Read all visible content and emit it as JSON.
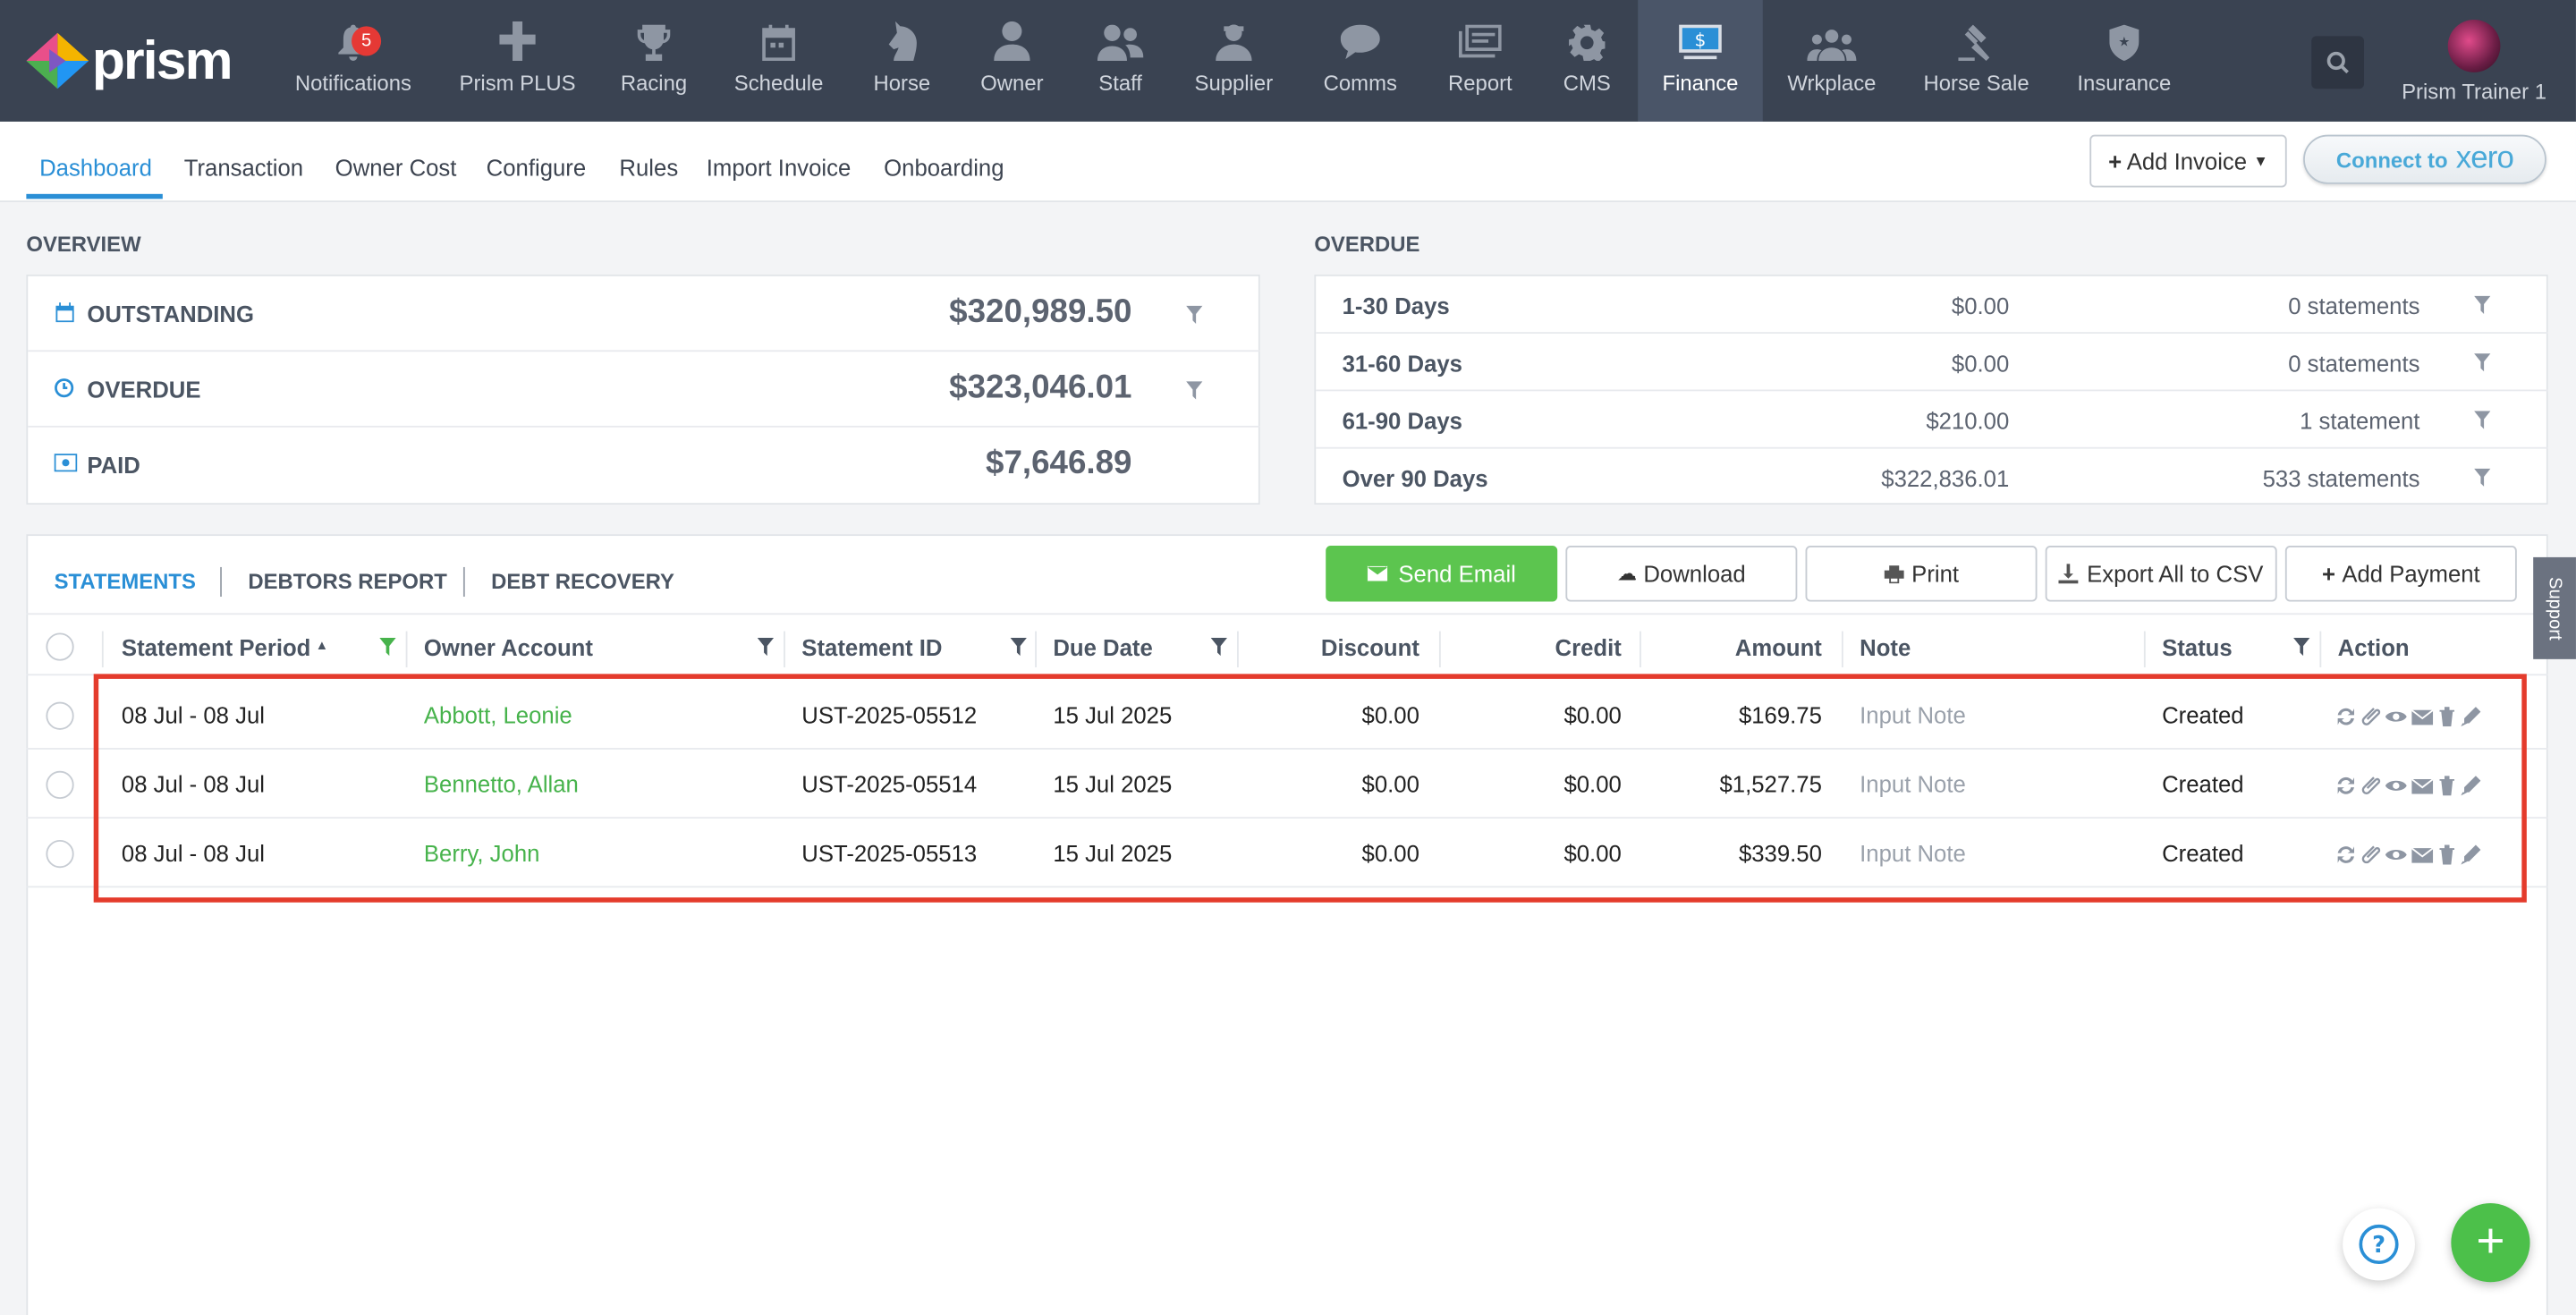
{
  "brand": {
    "name": "prism"
  },
  "nav": {
    "items": [
      {
        "label": "Notifications",
        "icon": "bell-icon",
        "badge": "5"
      },
      {
        "label": "Prism PLUS",
        "icon": "plus-cross-icon"
      },
      {
        "label": "Racing",
        "icon": "trophy-icon"
      },
      {
        "label": "Schedule",
        "icon": "calendar-icon"
      },
      {
        "label": "Horse",
        "icon": "horse-icon"
      },
      {
        "label": "Owner",
        "icon": "person-icon"
      },
      {
        "label": "Staff",
        "icon": "people-icon"
      },
      {
        "label": "Supplier",
        "icon": "supplier-icon"
      },
      {
        "label": "Comms",
        "icon": "chat-icon"
      },
      {
        "label": "Report",
        "icon": "report-icon"
      },
      {
        "label": "CMS",
        "icon": "gear-icon"
      },
      {
        "label": "Finance",
        "icon": "dollar-icon",
        "active": true
      },
      {
        "label": "Wrkplace",
        "icon": "group-icon"
      },
      {
        "label": "Horse Sale",
        "icon": "gavel-icon"
      },
      {
        "label": "Insurance",
        "icon": "shield-icon"
      }
    ],
    "user": "Prism Trainer 1"
  },
  "subnav": {
    "tabs": [
      "Dashboard",
      "Transaction",
      "Owner Cost",
      "Configure",
      "Rules",
      "Import Invoice",
      "Onboarding"
    ],
    "add_invoice": "Add Invoice",
    "connect_to": "Connect to",
    "xero": "xero"
  },
  "overview": {
    "title": "OVERVIEW",
    "rows": [
      {
        "label": "OUTSTANDING",
        "value": "$320,989.50"
      },
      {
        "label": "OVERDUE",
        "value": "$323,046.01"
      },
      {
        "label": "PAID",
        "value": "$7,646.89"
      }
    ]
  },
  "overdue": {
    "title": "OVERDUE",
    "rows": [
      {
        "label": "1-30 Days",
        "amount": "$0.00",
        "statements": "0 statements"
      },
      {
        "label": "31-60 Days",
        "amount": "$0.00",
        "statements": "0 statements"
      },
      {
        "label": "61-90 Days",
        "amount": "$210.00",
        "statements": "1 statement"
      },
      {
        "label": "Over 90 Days",
        "amount": "$322,836.01",
        "statements": "533 statements"
      }
    ]
  },
  "statements": {
    "tabs": [
      "STATEMENTS",
      "DEBTORS REPORT",
      "DEBT RECOVERY"
    ],
    "buttons": {
      "send_email": "Send Email",
      "download": "Download",
      "print": "Print",
      "export": "Export All to CSV",
      "add_payment": "Add Payment"
    },
    "columns": [
      "Statement Period",
      "Owner Account",
      "Statement ID",
      "Due Date",
      "Discount",
      "Credit",
      "Amount",
      "Note",
      "Status",
      "Action"
    ],
    "rows": [
      {
        "period": "08 Jul - 08 Jul",
        "owner": "Abbott, Leonie",
        "id": "UST-2025-05512",
        "due": "15 Jul 2025",
        "discount": "$0.00",
        "credit": "$0.00",
        "amount": "$169.75",
        "note": "Input Note",
        "status": "Created"
      },
      {
        "period": "08 Jul - 08 Jul",
        "owner": "Bennetto, Allan",
        "id": "UST-2025-05514",
        "due": "15 Jul 2025",
        "discount": "$0.00",
        "credit": "$0.00",
        "amount": "$1,527.75",
        "note": "Input Note",
        "status": "Created"
      },
      {
        "period": "08 Jul - 08 Jul",
        "owner": "Berry, John",
        "id": "UST-2025-05513",
        "due": "15 Jul 2025",
        "discount": "$0.00",
        "credit": "$0.00",
        "amount": "$339.50",
        "note": "Input Note",
        "status": "Created"
      }
    ]
  },
  "support": "Support",
  "colors": {
    "accent": "#2a8fd6",
    "green": "#5cc54f",
    "nav_bg": "#3a4352",
    "highlight": "#e43b2c"
  }
}
